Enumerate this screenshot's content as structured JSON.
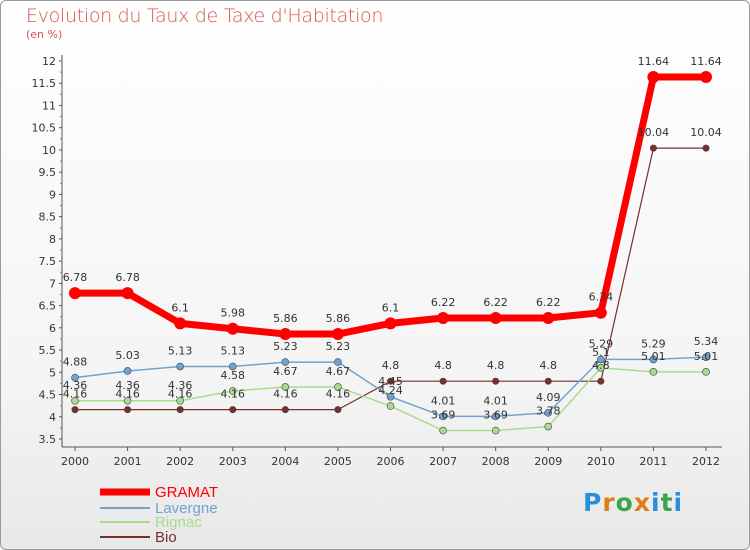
{
  "title": "Evolution du Taux de Taxe d'Habitation",
  "subtitle": "(en %)",
  "logo": {
    "text": "Proxiti",
    "colors": [
      "#2a8fd8",
      "#e07a1f",
      "#3aa64a",
      "#e07a1f",
      "#2a8fd8",
      "#3aa64a",
      "#2a8fd8"
    ]
  },
  "chart_data": {
    "type": "line",
    "title": "Evolution du Taux de Taxe d'Habitation",
    "ylabel": "(en %)",
    "xlabel": "",
    "x": [
      "2000",
      "2001",
      "2002",
      "2003",
      "2004",
      "2005",
      "2006",
      "2007",
      "2008",
      "2009",
      "2010",
      "2011",
      "2012"
    ],
    "ylim": [
      3.5,
      12
    ],
    "yticks": [
      "3.5",
      "4",
      "4.5",
      "5",
      "5.5",
      "6",
      "6.5",
      "7",
      "7.5",
      "8",
      "8.5",
      "9",
      "9.5",
      "10",
      "10.5",
      "11",
      "11.5",
      "12"
    ],
    "grid": false,
    "legend_position": "bottom-left",
    "series": [
      {
        "name": "GRAMAT",
        "color": "#ff0000",
        "values": [
          6.78,
          6.78,
          6.1,
          5.98,
          5.86,
          5.86,
          6.1,
          6.22,
          6.22,
          6.22,
          6.34,
          11.64,
          11.64
        ],
        "labels": [
          "6.78",
          "6.78",
          "6.1",
          "5.98",
          "5.86",
          "5.86",
          "6.1",
          "6.22",
          "6.22",
          "6.22",
          "6.34",
          "11.64",
          "11.64"
        ]
      },
      {
        "name": "Lavergne",
        "color": "#6fa3d0",
        "values": [
          4.88,
          5.03,
          5.13,
          5.13,
          5.23,
          5.23,
          4.45,
          4.01,
          4.01,
          4.09,
          5.29,
          5.29,
          5.34
        ],
        "labels": [
          "4.88",
          "5.03",
          "5.13",
          "5.13",
          "5.23",
          "5.23",
          "4.45",
          "4.01",
          "4.01",
          "4.09",
          "5.29",
          "5.29",
          "5.34"
        ]
      },
      {
        "name": "Rignac",
        "color": "#a8dc8c",
        "values": [
          4.36,
          4.36,
          4.36,
          4.58,
          4.67,
          4.67,
          4.24,
          3.69,
          3.69,
          3.78,
          5.1,
          5.01,
          5.01
        ],
        "labels": [
          "4.36",
          "4.36",
          "4.36",
          "4.58",
          "4.67",
          "4.67",
          "4.24",
          "3.69",
          "3.69",
          "3.78",
          "5.1",
          "5.01",
          "5.01"
        ]
      },
      {
        "name": "Bio",
        "color": "#7a2e2e",
        "values": [
          4.16,
          4.16,
          4.16,
          4.16,
          4.16,
          4.16,
          4.8,
          4.8,
          4.8,
          4.8,
          4.8,
          10.04,
          10.04
        ],
        "labels": [
          "4.16",
          "4.16",
          "4.16",
          "4.16",
          "4.16",
          "4.16",
          "4.8",
          "4.8",
          "4.8",
          "4.8",
          "4.8",
          "10.04",
          "10.04"
        ]
      }
    ]
  }
}
